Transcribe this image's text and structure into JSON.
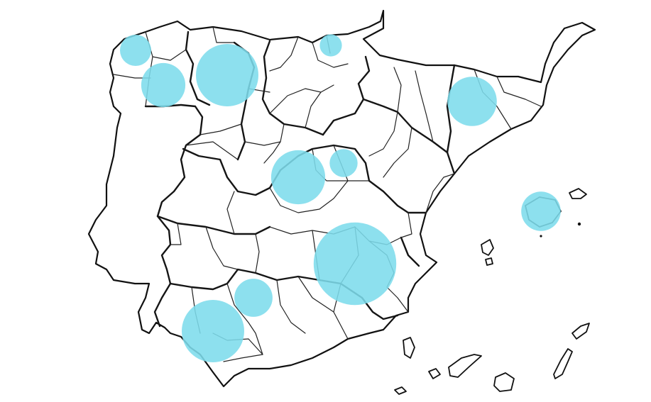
{
  "map": {
    "bubble_color": "#7ddcec",
    "line_color": "#111111",
    "background": "#ffffff",
    "bubbles": [
      {
        "id": "a-coruna",
        "size": 1
      },
      {
        "id": "lugo",
        "size": 2
      },
      {
        "id": "leon",
        "size": 4
      },
      {
        "id": "bizkaia",
        "size": 0.5
      },
      {
        "id": "lleida",
        "size": 2.5
      },
      {
        "id": "madrid",
        "size": 3
      },
      {
        "id": "guadalajara",
        "size": 0.8
      },
      {
        "id": "mallorca",
        "size": 1.6
      },
      {
        "id": "albacete",
        "size": 7
      },
      {
        "id": "cordoba",
        "size": 1.5
      },
      {
        "id": "sevilla",
        "size": 4
      }
    ]
  }
}
